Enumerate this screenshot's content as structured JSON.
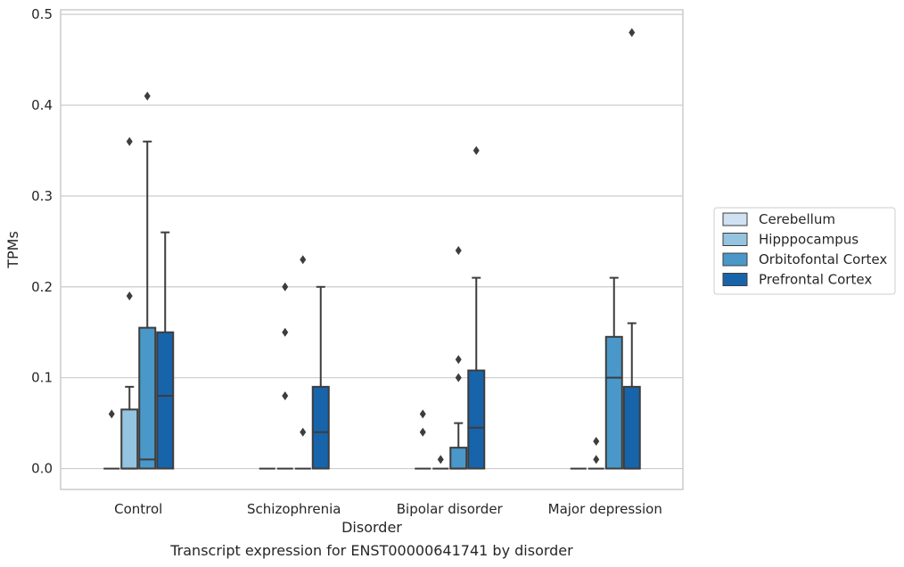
{
  "chart_data": {
    "type": "boxplot",
    "xlabel": "Disorder",
    "ylabel": "TPMs",
    "caption": "Transcript expression for ENST00000641741 by disorder",
    "ylim": [
      -0.023,
      0.505
    ],
    "yticks": [
      "0.0",
      "0.1",
      "0.2",
      "0.3",
      "0.4",
      "0.5"
    ],
    "ytick_values": [
      0.0,
      0.1,
      0.2,
      0.3,
      0.4,
      0.5
    ],
    "grid": true,
    "legend_position": "right",
    "categories": [
      "Control",
      "Schizophrenia",
      "Bipolar disorder",
      "Major depression"
    ],
    "series": [
      {
        "name": "Cerebellum",
        "color": "#d0e1f2",
        "boxes": [
          {
            "q1": 0,
            "median": 0,
            "q3": 0,
            "whislo": 0,
            "whishi": 0,
            "fliers": [
              0.06
            ]
          },
          {
            "q1": 0,
            "median": 0,
            "q3": 0,
            "whislo": 0,
            "whishi": 0,
            "fliers": []
          },
          {
            "q1": 0,
            "median": 0,
            "q3": 0,
            "whislo": 0,
            "whishi": 0,
            "fliers": [
              0.06,
              0.04
            ]
          },
          {
            "q1": 0,
            "median": 0,
            "q3": 0,
            "whislo": 0,
            "whishi": 0,
            "fliers": []
          }
        ]
      },
      {
        "name": "Hipppocampus",
        "color": "#94c4df",
        "boxes": [
          {
            "q1": 0,
            "median": 0,
            "q3": 0.065,
            "whislo": 0,
            "whishi": 0.09,
            "fliers": [
              0.36,
              0.19
            ]
          },
          {
            "q1": 0,
            "median": 0,
            "q3": 0,
            "whislo": 0,
            "whishi": 0,
            "fliers": [
              0.2,
              0.15,
              0.08
            ]
          },
          {
            "q1": 0,
            "median": 0,
            "q3": 0,
            "whislo": 0,
            "whishi": 0,
            "fliers": [
              0.01
            ]
          },
          {
            "q1": 0,
            "median": 0,
            "q3": 0,
            "whislo": 0,
            "whishi": 0,
            "fliers": [
              0.03,
              0.01
            ]
          }
        ]
      },
      {
        "name": "Orbitofontal Cortex",
        "color": "#4a98c9",
        "boxes": [
          {
            "q1": 0,
            "median": 0.01,
            "q3": 0.155,
            "whislo": 0,
            "whishi": 0.36,
            "fliers": [
              0.41
            ]
          },
          {
            "q1": 0,
            "median": 0,
            "q3": 0,
            "whislo": 0,
            "whishi": 0,
            "fliers": [
              0.23,
              0.04
            ]
          },
          {
            "q1": 0,
            "median": 0,
            "q3": 0.023,
            "whislo": 0,
            "whishi": 0.05,
            "fliers": [
              0.24,
              0.12,
              0.1
            ]
          },
          {
            "q1": 0,
            "median": 0.1,
            "q3": 0.145,
            "whislo": 0,
            "whishi": 0.21,
            "fliers": []
          }
        ]
      },
      {
        "name": "Prefrontal Cortex",
        "color": "#1764ab",
        "boxes": [
          {
            "q1": 0,
            "median": 0.08,
            "q3": 0.15,
            "whislo": 0,
            "whishi": 0.26,
            "fliers": []
          },
          {
            "q1": 0,
            "median": 0.04,
            "q3": 0.09,
            "whislo": 0,
            "whishi": 0.2,
            "fliers": []
          },
          {
            "q1": 0,
            "median": 0.045,
            "q3": 0.108,
            "whislo": 0,
            "whishi": 0.21,
            "fliers": [
              0.35
            ]
          },
          {
            "q1": 0,
            "median": 0,
            "q3": 0.09,
            "whislo": 0,
            "whishi": 0.16,
            "fliers": [
              0.48
            ]
          }
        ]
      }
    ]
  }
}
